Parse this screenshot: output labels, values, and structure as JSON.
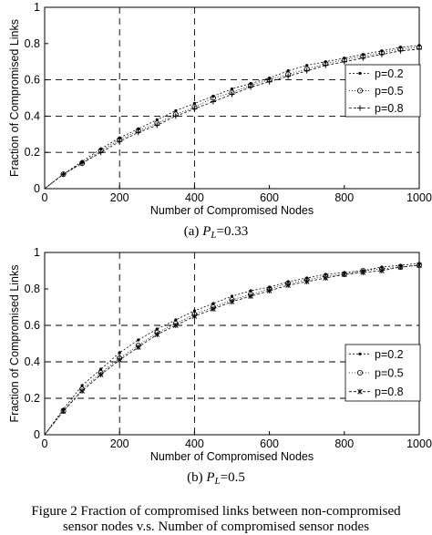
{
  "chart_data": [
    {
      "type": "line",
      "subcaption_prefix": "(a) ",
      "subcaption_var": "P",
      "subcaption_sub": "L",
      "subcaption_value": "=0.33",
      "xlabel": "Number of Compromised Nodes",
      "ylabel": "Fraction of Compromised Links",
      "xlim": [
        0,
        1000
      ],
      "ylim": [
        0,
        1
      ],
      "xticks": [
        0,
        200,
        400,
        600,
        800,
        1000
      ],
      "yticks": [
        0,
        0.2,
        0.4,
        0.6,
        0.8,
        1
      ],
      "grid": "dashed",
      "legend_position": "right",
      "x": [
        0,
        50,
        100,
        150,
        200,
        250,
        300,
        350,
        400,
        450,
        500,
        550,
        600,
        650,
        700,
        750,
        800,
        850,
        900,
        950,
        1000
      ],
      "series": [
        {
          "name": "p=0.2",
          "marker": "dot",
          "values": [
            0,
            0.08,
            0.15,
            0.22,
            0.28,
            0.33,
            0.38,
            0.43,
            0.47,
            0.51,
            0.55,
            0.58,
            0.61,
            0.65,
            0.68,
            0.7,
            0.72,
            0.74,
            0.76,
            0.78,
            0.79
          ]
        },
        {
          "name": "p=0.5",
          "marker": "circle",
          "values": [
            0,
            0.08,
            0.14,
            0.21,
            0.27,
            0.32,
            0.36,
            0.41,
            0.45,
            0.5,
            0.53,
            0.57,
            0.6,
            0.63,
            0.66,
            0.69,
            0.71,
            0.73,
            0.75,
            0.77,
            0.78
          ]
        },
        {
          "name": "p=0.8",
          "marker": "plus",
          "values": [
            0,
            0.08,
            0.14,
            0.2,
            0.26,
            0.31,
            0.35,
            0.4,
            0.44,
            0.48,
            0.52,
            0.56,
            0.59,
            0.62,
            0.65,
            0.68,
            0.7,
            0.72,
            0.74,
            0.76,
            0.77
          ]
        }
      ]
    },
    {
      "type": "line",
      "subcaption_prefix": "(b) ",
      "subcaption_var": "P",
      "subcaption_sub": "L",
      "subcaption_value": "=0.5",
      "xlabel": "Number of Compromised Nodes",
      "ylabel": "Fraction of Compromised Links",
      "xlim": [
        0,
        1000
      ],
      "ylim": [
        0,
        1
      ],
      "xticks": [
        0,
        200,
        400,
        600,
        800,
        1000
      ],
      "yticks": [
        0,
        0.2,
        0.4,
        0.6,
        0.8,
        1
      ],
      "grid": "dashed",
      "legend_position": "right",
      "x": [
        0,
        50,
        100,
        150,
        200,
        250,
        300,
        350,
        400,
        450,
        500,
        550,
        600,
        650,
        700,
        750,
        800,
        850,
        900,
        950,
        1000
      ],
      "series": [
        {
          "name": "p=0.2",
          "marker": "dot",
          "values": [
            0,
            0.14,
            0.27,
            0.36,
            0.45,
            0.52,
            0.58,
            0.63,
            0.68,
            0.72,
            0.76,
            0.79,
            0.81,
            0.84,
            0.86,
            0.88,
            0.89,
            0.9,
            0.92,
            0.93,
            0.94
          ]
        },
        {
          "name": "p=0.5",
          "marker": "circle",
          "values": [
            0,
            0.13,
            0.25,
            0.34,
            0.42,
            0.49,
            0.56,
            0.61,
            0.66,
            0.7,
            0.74,
            0.77,
            0.8,
            0.83,
            0.85,
            0.87,
            0.88,
            0.9,
            0.91,
            0.92,
            0.93
          ]
        },
        {
          "name": "p=0.8",
          "marker": "asterisk",
          "values": [
            0,
            0.13,
            0.24,
            0.33,
            0.41,
            0.48,
            0.55,
            0.6,
            0.65,
            0.69,
            0.73,
            0.76,
            0.79,
            0.82,
            0.84,
            0.86,
            0.88,
            0.89,
            0.9,
            0.92,
            0.93
          ]
        }
      ]
    }
  ],
  "caption": {
    "line1": "Figure 2 Fraction of compromised links between non-compromised",
    "line2": "sensor nodes v.s. Number of compromised sensor nodes"
  }
}
